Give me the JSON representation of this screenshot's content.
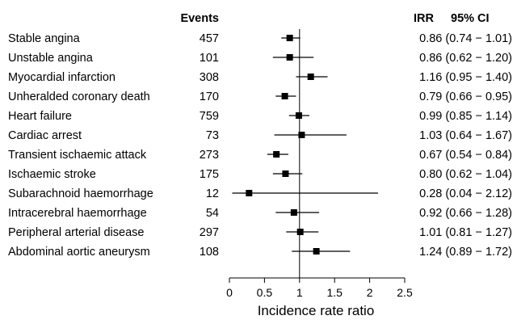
{
  "chart_data": {
    "type": "forest",
    "headers": {
      "events": "Events",
      "ratio": "IRR",
      "ci": "95% CI"
    },
    "xlabel": "Incidence rate ratio",
    "xlim": [
      0,
      2.5
    ],
    "xticks": [
      "0",
      "0.5",
      "1",
      "1.5",
      "2",
      "2.5"
    ],
    "reference_line": 1,
    "rows": [
      {
        "label": "Stable angina",
        "events": "457",
        "irr": 0.86,
        "lo": 0.74,
        "hi": 1.01,
        "ci_text": "0.86 (0.74 − 1.01)"
      },
      {
        "label": "Unstable angina",
        "events": "101",
        "irr": 0.86,
        "lo": 0.62,
        "hi": 1.2,
        "ci_text": "0.86 (0.62 − 1.20)"
      },
      {
        "label": "Myocardial infarction",
        "events": "308",
        "irr": 1.16,
        "lo": 0.95,
        "hi": 1.4,
        "ci_text": "1.16 (0.95 − 1.40)"
      },
      {
        "label": "Unheralded coronary death",
        "events": "170",
        "irr": 0.79,
        "lo": 0.66,
        "hi": 0.95,
        "ci_text": "0.79 (0.66 − 0.95)"
      },
      {
        "label": "Heart failure",
        "events": "759",
        "irr": 0.99,
        "lo": 0.85,
        "hi": 1.14,
        "ci_text": "0.99 (0.85 − 1.14)"
      },
      {
        "label": "Cardiac arrest",
        "events": "73",
        "irr": 1.03,
        "lo": 0.64,
        "hi": 1.67,
        "ci_text": "1.03 (0.64 − 1.67)"
      },
      {
        "label": "Transient ischaemic attack",
        "events": "273",
        "irr": 0.67,
        "lo": 0.54,
        "hi": 0.84,
        "ci_text": "0.67 (0.54 − 0.84)"
      },
      {
        "label": "Ischaemic stroke",
        "events": "175",
        "irr": 0.8,
        "lo": 0.62,
        "hi": 1.04,
        "ci_text": "0.80 (0.62 − 1.04)"
      },
      {
        "label": "Subarachnoid haemorrhage",
        "events": "12",
        "irr": 0.28,
        "lo": 0.04,
        "hi": 2.12,
        "ci_text": "0.28 (0.04 − 2.12)"
      },
      {
        "label": "Intracerebral haemorrhage",
        "events": "54",
        "irr": 0.92,
        "lo": 0.66,
        "hi": 1.28,
        "ci_text": "0.92 (0.66 − 1.28)"
      },
      {
        "label": "Peripheral arterial disease",
        "events": "297",
        "irr": 1.01,
        "lo": 0.81,
        "hi": 1.27,
        "ci_text": "1.01 (0.81 − 1.27)"
      },
      {
        "label": "Abdominal aortic aneurysm",
        "events": "108",
        "irr": 1.24,
        "lo": 0.89,
        "hi": 1.72,
        "ci_text": "1.24 (0.89 − 1.72)"
      }
    ]
  }
}
